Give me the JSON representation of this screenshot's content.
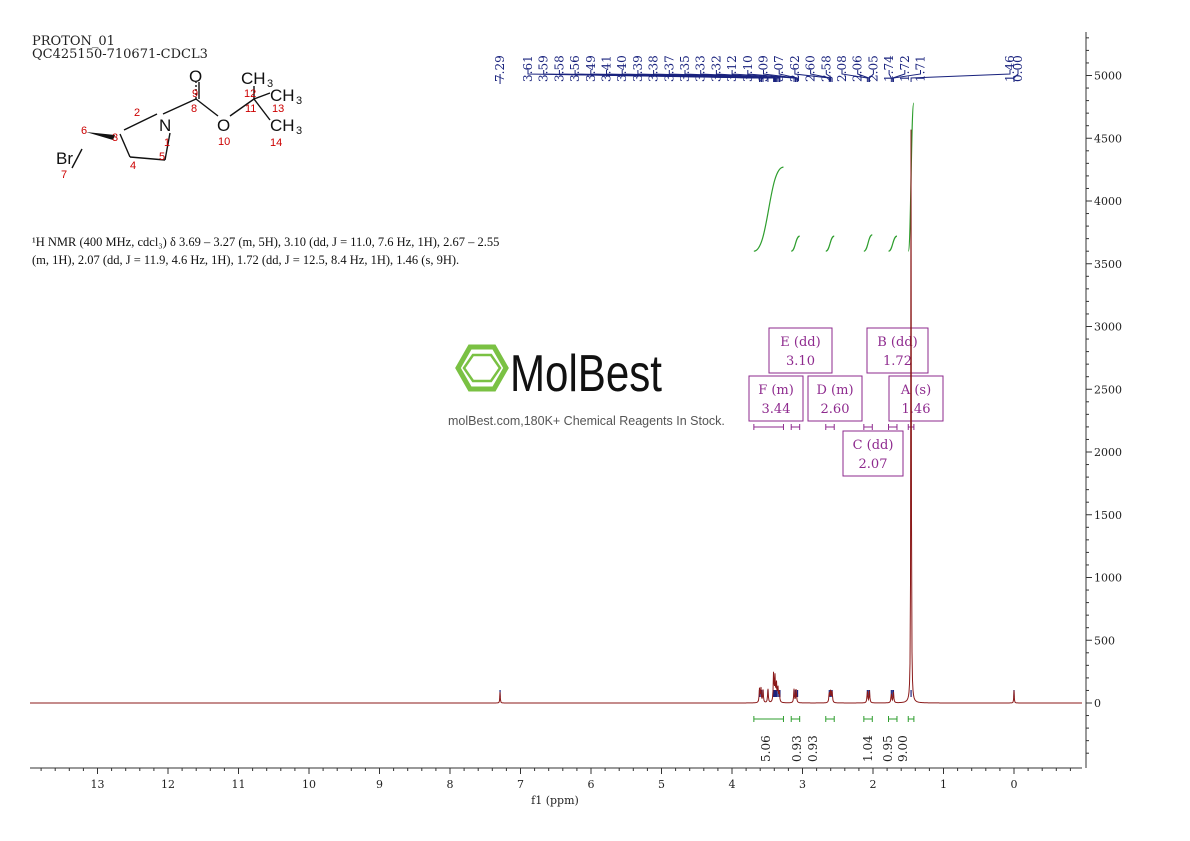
{
  "header": {
    "line1": "PROTON_01",
    "line2": "QC425150-710671-CDCL3"
  },
  "molecule": {
    "atoms": {
      "O_top": "O",
      "N": "N",
      "O_ester": "O",
      "Br": "Br",
      "CH3_a": "CH",
      "CH3_b": "CH",
      "CH3_c": "CH",
      "sub3": "3"
    },
    "numbers": {
      "n1": "1",
      "n2": "2",
      "n3": "3",
      "n4": "4",
      "n5": "5",
      "n6": "6",
      "n7": "7",
      "n8": "8",
      "n9": "9",
      "n10": "10",
      "n11": "11",
      "n12": "12",
      "n13": "13",
      "n14": "14"
    }
  },
  "nmr_text": {
    "line1": "¹H NMR (400 MHz, cdcl₃) δ 3.69 – 3.27 (m, 5H), 3.10 (dd, J = 11.0, 7.6 Hz, 1H), 2.67 – 2.55",
    "line2": "(m, 1H), 2.07 (dd, J = 11.9, 4.6 Hz, 1H), 1.72 (dd, J = 12.5, 8.4 Hz, 1H), 1.46 (s, 9H)."
  },
  "watermark": {
    "brand": "MolBest",
    "tagline": "molBest.com,180K+ Chemical Reagents In Stock."
  },
  "colors": {
    "spectrum": "#8b1a1a",
    "peak_labels": "#1a237e",
    "integral": "#2e9e2e",
    "multiplet_box": "#8e2a8e",
    "structure_numbers": "#cc0000",
    "axis": "#333333",
    "logo": "#7ac143"
  },
  "chart_data": {
    "type": "line",
    "xlabel": "f1 (ppm)",
    "xlim": [
      14,
      -1
    ],
    "ylim": [
      -500,
      5300
    ],
    "x_ticks": [
      13,
      12,
      11,
      10,
      9,
      8,
      7,
      6,
      5,
      4,
      3,
      2,
      1,
      0
    ],
    "y_ticks": [
      0,
      500,
      1000,
      1500,
      2000,
      2500,
      3000,
      3500,
      4000,
      4500,
      5000
    ],
    "peak_labels": [
      "7.29",
      "3.61",
      "3.59",
      "3.58",
      "3.56",
      "3.49",
      "3.41",
      "3.40",
      "3.39",
      "3.38",
      "3.37",
      "3.35",
      "3.33",
      "3.32",
      "3.12",
      "3.10",
      "3.09",
      "3.07",
      "2.62",
      "2.60",
      "2.58",
      "2.08",
      "2.06",
      "2.05",
      "1.74",
      "1.72",
      "1.71",
      "1.46",
      "0.00"
    ],
    "peaks": [
      {
        "ppm": 7.29,
        "height": 90,
        "width": 0.004
      },
      {
        "ppm": 3.61,
        "height": 110,
        "width": 0.006
      },
      {
        "ppm": 3.59,
        "height": 120,
        "width": 0.006
      },
      {
        "ppm": 3.56,
        "height": 100,
        "width": 0.006
      },
      {
        "ppm": 3.49,
        "height": 110,
        "width": 0.006
      },
      {
        "ppm": 3.41,
        "height": 240,
        "width": 0.006
      },
      {
        "ppm": 3.39,
        "height": 200,
        "width": 0.006
      },
      {
        "ppm": 3.37,
        "height": 150,
        "width": 0.006
      },
      {
        "ppm": 3.35,
        "height": 130,
        "width": 0.006
      },
      {
        "ppm": 3.33,
        "height": 100,
        "width": 0.006
      },
      {
        "ppm": 3.12,
        "height": 110,
        "width": 0.006
      },
      {
        "ppm": 3.09,
        "height": 120,
        "width": 0.006
      },
      {
        "ppm": 2.62,
        "height": 90,
        "width": 0.006
      },
      {
        "ppm": 2.6,
        "height": 110,
        "width": 0.006
      },
      {
        "ppm": 2.58,
        "height": 90,
        "width": 0.006
      },
      {
        "ppm": 2.08,
        "height": 100,
        "width": 0.006
      },
      {
        "ppm": 2.05,
        "height": 95,
        "width": 0.006
      },
      {
        "ppm": 1.74,
        "height": 80,
        "width": 0.006
      },
      {
        "ppm": 1.71,
        "height": 85,
        "width": 0.006
      },
      {
        "ppm": 1.46,
        "height": 4850,
        "width": 0.004
      },
      {
        "ppm": 0.0,
        "height": 100,
        "width": 0.004
      }
    ],
    "multiplets": [
      {
        "label": "F (m)",
        "value": "3.44",
        "from": 3.69,
        "to": 3.27
      },
      {
        "label": "E (dd)",
        "value": "3.10",
        "from": 3.16,
        "to": 3.04
      },
      {
        "label": "D (m)",
        "value": "2.60",
        "from": 2.67,
        "to": 2.55
      },
      {
        "label": "C (dd)",
        "value": "2.07",
        "from": 2.13,
        "to": 2.01
      },
      {
        "label": "B (dd)",
        "value": "1.72",
        "from": 1.78,
        "to": 1.66
      },
      {
        "label": "A (s)",
        "value": "1.46",
        "from": 1.5,
        "to": 1.42
      }
    ],
    "integrals": [
      {
        "value": "5.06",
        "from": 3.69,
        "to": 3.27,
        "level_from": 3600,
        "level_to": 4270
      },
      {
        "value": "0.93",
        "from": 3.16,
        "to": 3.04,
        "level_from": 3600,
        "level_to": 3720
      },
      {
        "value": "0.93",
        "from": 2.67,
        "to": 2.55,
        "level_from": 3600,
        "level_to": 3720
      },
      {
        "value": "1.04",
        "from": 2.13,
        "to": 2.01,
        "level_from": 3600,
        "level_to": 3730
      },
      {
        "value": "0.95",
        "from": 1.78,
        "to": 1.66,
        "level_from": 3600,
        "level_to": 3720
      },
      {
        "value": "9.00",
        "from": 1.5,
        "to": 1.42,
        "level_from": 3600,
        "level_to": 4780
      }
    ]
  }
}
